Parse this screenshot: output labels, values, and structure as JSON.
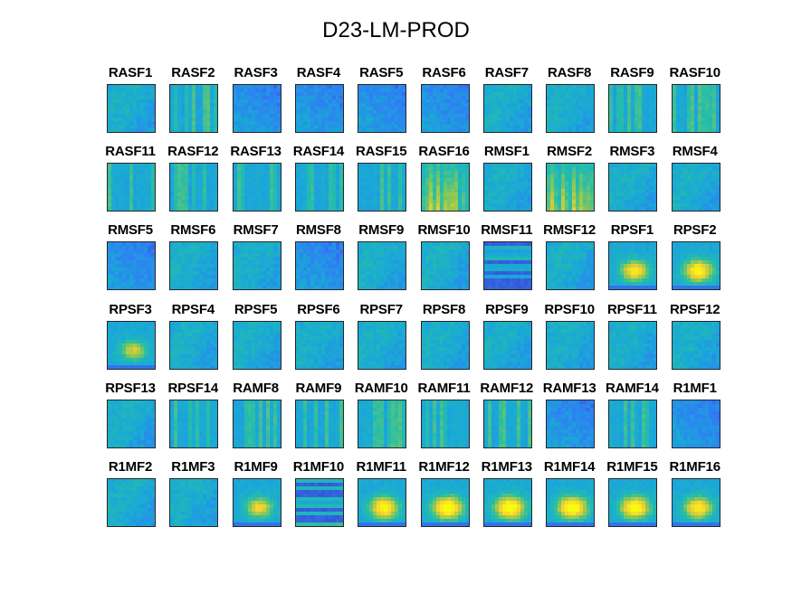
{
  "chart_data": {
    "type": "heatmap",
    "title": "D23-LM-PROD",
    "colormap": [
      "#3e26a8",
      "#2f7df5",
      "#1aa8d7",
      "#24bdab",
      "#95c94c",
      "#f6d133",
      "#f9fb0e"
    ],
    "panels": [
      {
        "label": "RASF1",
        "style": "blue",
        "hot": 0.0
      },
      {
        "label": "RASF2",
        "style": "stripe",
        "hot": 0.0
      },
      {
        "label": "RASF3",
        "style": "dark",
        "hot": 0.0
      },
      {
        "label": "RASF4",
        "style": "dark",
        "hot": 0.0
      },
      {
        "label": "RASF5",
        "style": "dark",
        "hot": 0.0
      },
      {
        "label": "RASF6",
        "style": "dark",
        "hot": 0.0
      },
      {
        "label": "RASF7",
        "style": "blue",
        "hot": 0.0
      },
      {
        "label": "RASF8",
        "style": "blue",
        "hot": 0.0
      },
      {
        "label": "RASF9",
        "style": "stripe",
        "hot": 0.0
      },
      {
        "label": "RASF10",
        "style": "stripe",
        "hot": 0.0
      },
      {
        "label": "RASF11",
        "style": "stripe",
        "hot": 0.0
      },
      {
        "label": "RASF12",
        "style": "stripe",
        "hot": 0.0
      },
      {
        "label": "RASF13",
        "style": "stripe",
        "hot": 0.0
      },
      {
        "label": "RASF14",
        "style": "stripe",
        "hot": 0.0
      },
      {
        "label": "RASF15",
        "style": "stripe",
        "hot": 0.0
      },
      {
        "label": "RASF16",
        "style": "warm",
        "hot": 0.0
      },
      {
        "label": "RMSF1",
        "style": "blue",
        "hot": 0.0
      },
      {
        "label": "RMSF2",
        "style": "warm",
        "hot": 0.0
      },
      {
        "label": "RMSF3",
        "style": "blue",
        "hot": 0.0
      },
      {
        "label": "RMSF4",
        "style": "blue",
        "hot": 0.0
      },
      {
        "label": "RMSF5",
        "style": "dark",
        "hot": 0.0
      },
      {
        "label": "RMSF6",
        "style": "blue",
        "hot": 0.0
      },
      {
        "label": "RMSF7",
        "style": "blue",
        "hot": 0.0
      },
      {
        "label": "RMSF8",
        "style": "dark",
        "hot": 0.0
      },
      {
        "label": "RMSF9",
        "style": "blue",
        "hot": 0.0
      },
      {
        "label": "RMSF10",
        "style": "blue",
        "hot": 0.0
      },
      {
        "label": "RMSF11",
        "style": "hstripe",
        "hot": 0.0
      },
      {
        "label": "RMSF12",
        "style": "blue",
        "hot": 0.0
      },
      {
        "label": "RPSF1",
        "style": "blob",
        "hot": 0.8
      },
      {
        "label": "RPSF2",
        "style": "blob",
        "hot": 0.9
      },
      {
        "label": "RPSF3",
        "style": "blob",
        "hot": 0.6
      },
      {
        "label": "RPSF4",
        "style": "blue",
        "hot": 0.0
      },
      {
        "label": "RPSF5",
        "style": "blue",
        "hot": 0.0
      },
      {
        "label": "RPSF6",
        "style": "blue",
        "hot": 0.0
      },
      {
        "label": "RPSF7",
        "style": "blue",
        "hot": 0.0
      },
      {
        "label": "RPSF8",
        "style": "blue",
        "hot": 0.0
      },
      {
        "label": "RPSF9",
        "style": "blue",
        "hot": 0.0
      },
      {
        "label": "RPSF10",
        "style": "blue",
        "hot": 0.0
      },
      {
        "label": "RPSF11",
        "style": "blue",
        "hot": 0.0
      },
      {
        "label": "RPSF12",
        "style": "blue",
        "hot": 0.0
      },
      {
        "label": "RPSF13",
        "style": "blue",
        "hot": 0.0
      },
      {
        "label": "RPSF14",
        "style": "stripe",
        "hot": 0.0
      },
      {
        "label": "RAMF8",
        "style": "stripe",
        "hot": 0.2
      },
      {
        "label": "RAMF9",
        "style": "stripe",
        "hot": 0.1
      },
      {
        "label": "RAMF10",
        "style": "stripe",
        "hot": 0.0
      },
      {
        "label": "RAMF11",
        "style": "stripe",
        "hot": 0.0
      },
      {
        "label": "RAMF12",
        "style": "stripe",
        "hot": 0.0
      },
      {
        "label": "RAMF13",
        "style": "dark",
        "hot": 0.0
      },
      {
        "label": "RAMF14",
        "style": "stripe",
        "hot": 0.0
      },
      {
        "label": "R1MF1",
        "style": "dark",
        "hot": 0.0
      },
      {
        "label": "R1MF2",
        "style": "blue",
        "hot": 0.0
      },
      {
        "label": "R1MF3",
        "style": "blue",
        "hot": 0.0
      },
      {
        "label": "R1MF9",
        "style": "blob",
        "hot": 0.7
      },
      {
        "label": "R1MF10",
        "style": "hstripe",
        "hot": 0.0
      },
      {
        "label": "R1MF11",
        "style": "blob",
        "hot": 0.9
      },
      {
        "label": "R1MF12",
        "style": "blob",
        "hot": 1.0
      },
      {
        "label": "R1MF13",
        "style": "blob",
        "hot": 1.0
      },
      {
        "label": "R1MF14",
        "style": "blob",
        "hot": 1.0
      },
      {
        "label": "R1MF15",
        "style": "blob",
        "hot": 0.95
      },
      {
        "label": "R1MF16",
        "style": "blob",
        "hot": 0.85
      }
    ]
  }
}
